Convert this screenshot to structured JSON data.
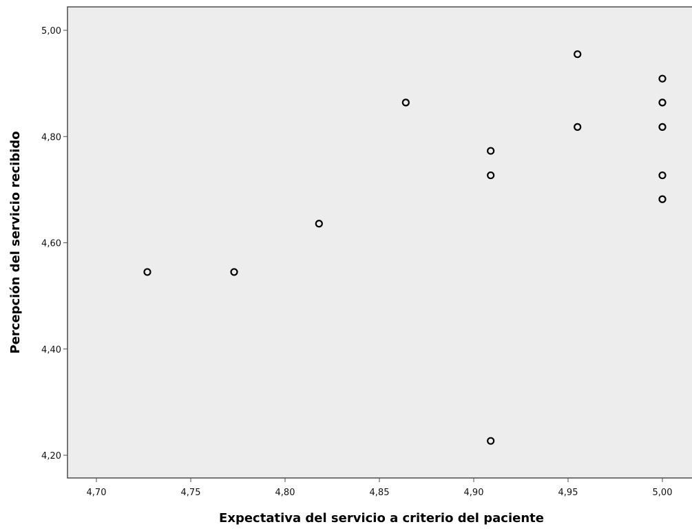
{
  "chart_data": {
    "type": "scatter",
    "xlabel": "Expectativa del servicio a criterio del paciente",
    "ylabel": "Percepción del servicio recibido",
    "x_ticks": [
      "4,70",
      "4,75",
      "4,80",
      "4,85",
      "4,90",
      "4,95",
      "5,00"
    ],
    "y_ticks": [
      "4,20",
      "4,40",
      "4,60",
      "4,80",
      "5,00"
    ],
    "x_tick_values": [
      4.7,
      4.75,
      4.8,
      4.85,
      4.9,
      4.95,
      5.0
    ],
    "y_tick_values": [
      4.2,
      4.4,
      4.6,
      4.8,
      5.0
    ],
    "grid": false,
    "background_color": "#ededed",
    "marker_style": "open-circle",
    "points": [
      {
        "x": 4.727,
        "y": 4.545
      },
      {
        "x": 4.773,
        "y": 4.545
      },
      {
        "x": 4.818,
        "y": 4.636
      },
      {
        "x": 4.864,
        "y": 4.864
      },
      {
        "x": 4.909,
        "y": 4.773
      },
      {
        "x": 4.909,
        "y": 4.727
      },
      {
        "x": 4.909,
        "y": 4.227
      },
      {
        "x": 4.955,
        "y": 4.955
      },
      {
        "x": 4.955,
        "y": 4.818
      },
      {
        "x": 5.0,
        "y": 4.909
      },
      {
        "x": 5.0,
        "y": 4.864
      },
      {
        "x": 5.0,
        "y": 4.818
      },
      {
        "x": 5.0,
        "y": 4.727
      },
      {
        "x": 5.0,
        "y": 4.682
      }
    ]
  }
}
